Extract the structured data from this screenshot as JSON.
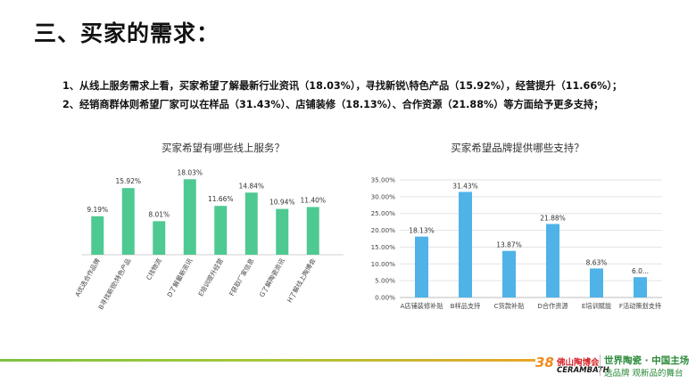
{
  "title": "三、买家的需求：",
  "points": [
    "1、从线上服务需求上看，买家希望了解最新行业资讯（18.03%），寻找新锐\\特色产品（15.92%），经营提升（11.66%）；",
    "2、经销商群体则希望厂家可以在样品（31.43%）、店铺装修（18.13%）、合作资源（21.88%）等方面给予更多支持；"
  ],
  "chart_data": [
    {
      "type": "bar",
      "title": "买家希望有哪些线上服务？",
      "categories": [
        "A优选合作品牌",
        "B寻找新锐\\特色产品",
        "C找物流",
        "D了解最新资讯",
        "E培训提升经营",
        "F获取厂家信息",
        "G了解陶瓷资讯",
        "H了解线上陶博会"
      ],
      "values": [
        9.19,
        15.92,
        8.01,
        18.03,
        11.66,
        14.84,
        10.94,
        11.4
      ],
      "data_labels": [
        "9.19%",
        "15.92%",
        "8.01%",
        "18.03%",
        "11.66%",
        "14.84%",
        "10.94%",
        "11.40%"
      ],
      "ylim": [
        0,
        20
      ],
      "grid": false,
      "color": "#4ec992"
    },
    {
      "type": "bar",
      "title": "买家希望品牌提供哪些支持？",
      "categories": [
        "A店铺装修补贴",
        "B样品支持",
        "C货款补贴",
        "D合作资源",
        "E培训赋能",
        "F活动策划支持"
      ],
      "values": [
        18.13,
        31.43,
        13.87,
        21.88,
        8.63,
        6.05
      ],
      "data_labels": [
        "18.13%",
        "31.43%",
        "13.87%",
        "21.88%",
        "8.63%",
        "6.0..."
      ],
      "yticks": [
        "0.00%",
        "5.00%",
        "10.00%",
        "15.00%",
        "20.00%",
        "25.00%",
        "30.00%",
        "35.00%"
      ],
      "ylim": [
        0,
        35
      ],
      "grid": true,
      "color": "#4fb3e8"
    }
  ],
  "footer": {
    "logo_mark": "38",
    "logo_cn": "佛山陶博会",
    "logo_en": "CERAMBATH",
    "slogan_1": "世界陶瓷 · 中国主场",
    "slogan_2": "选品牌 观新品的舞台"
  }
}
